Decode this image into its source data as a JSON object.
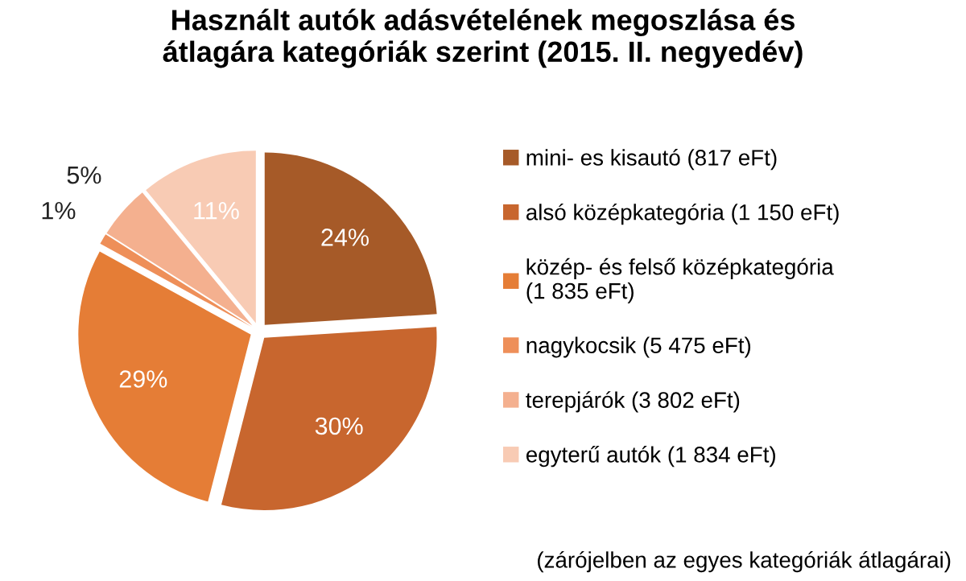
{
  "chart_data": {
    "type": "pie",
    "title": "Használt autók adásvételének megoszlása és\nátlagára kategóriák szerint (2015. II. negyedév)",
    "categories": [
      "mini- es kisautó (817 eFt)",
      "alsó középkategória (1 150 eFt)",
      "közép- és felső középkategória\n(1 835 eFt)",
      "nagykocsik (5 475 eFt)",
      "terepjárók (3 802 eFt)",
      "egyterű autók (1 834 eFt)"
    ],
    "values": [
      24,
      30,
      29,
      1,
      5,
      11
    ],
    "value_labels": [
      "24%",
      "30%",
      "29%",
      "1%",
      "5%",
      "11%"
    ],
    "colors": [
      "#a65a28",
      "#c8662e",
      "#e57d36",
      "#ee8f59",
      "#f4b08f",
      "#f8cbb4"
    ],
    "legend": "right",
    "annotations": [
      "(zárójelben az egyes kategóriák átlagárai)"
    ]
  }
}
